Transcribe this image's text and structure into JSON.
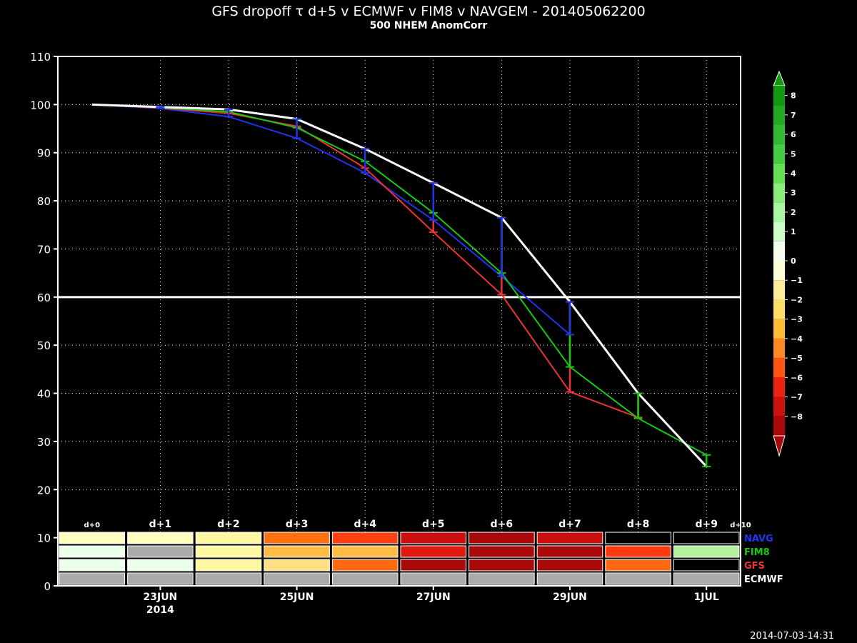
{
  "header": {
    "title": "GFS dropoff τ d+5 v ECMWF v FIM8 v NAVGEM - 201405062200",
    "subtitle": "500 NHEM AnomCorr"
  },
  "timestamp": "2014-07-03-14:31",
  "colors": {
    "NAVG": "#2233ee",
    "FIM8": "#11cc11",
    "GFS": "#ee3333",
    "ECMWF": "#ffffff",
    "missing": "#aaaaaa",
    "empty": "#000000"
  },
  "chart_data": {
    "type": "line",
    "ylim": [
      0,
      110
    ],
    "yticks": [
      0,
      10,
      20,
      30,
      40,
      50,
      60,
      70,
      80,
      90,
      100,
      110
    ],
    "x": [
      0,
      1,
      2,
      3,
      4,
      5,
      6,
      7,
      8,
      9,
      10
    ],
    "xticks": [
      {
        "x": 1,
        "label": "23JUN",
        "sub": "2014"
      },
      {
        "x": 3,
        "label": "25JUN",
        "sub": ""
      },
      {
        "x": 5,
        "label": "27JUN",
        "sub": ""
      },
      {
        "x": 7,
        "label": "29JUN",
        "sub": ""
      },
      {
        "x": 9,
        "label": "1JUL",
        "sub": ""
      }
    ],
    "reference_line": 60,
    "day_labels": [
      "d+0",
      "d+1",
      "d+2",
      "d+3",
      "d+4",
      "d+5",
      "d+6",
      "d+7",
      "d+8",
      "d+9",
      "d+10"
    ],
    "series": [
      {
        "name": "ECMWF",
        "color": "#ffffff",
        "values": [
          100,
          99.5,
          99,
          97,
          90.8,
          83.7,
          76.5,
          59,
          40,
          24.8,
          null
        ]
      },
      {
        "name": "FIM8",
        "color": "#11cc11",
        "values": [
          100,
          99.4,
          98.5,
          95.2,
          88.2,
          77.5,
          65,
          45.5,
          34.8,
          27.2,
          null
        ]
      },
      {
        "name": "GFS",
        "color": "#ee3333",
        "values": [
          100,
          99.3,
          98.2,
          95.5,
          86.8,
          73.5,
          60.5,
          40.3,
          35,
          null,
          null
        ]
      },
      {
        "name": "NAVG",
        "color": "#2233ee",
        "values": [
          100,
          99.2,
          97.5,
          93,
          85.8,
          76,
          64.3,
          52.2,
          null,
          null,
          null
        ]
      }
    ],
    "scorecard": {
      "rows": [
        "NAVG",
        "FIM8",
        "GFS",
        "ECMWF"
      ],
      "cells": {
        "NAVG": [
          "#ffffc0",
          "#ffffc0",
          "#fff8a0",
          "#ff7010",
          "#ff4010",
          "#cc1010",
          "#aa0a0a",
          "#cc1010",
          "#000000",
          "#000000",
          "#000000"
        ],
        "FIM8": [
          "#eaffea",
          "#aaaaaa",
          "#fff8a0",
          "#ffbb44",
          "#ffbb44",
          "#e01a10",
          "#aa0a0a",
          "#aa0a0a",
          "#ff3a10",
          "#b4f0a0",
          "#000000"
        ],
        "GFS": [
          "#eaffea",
          "#eaffea",
          "#fff8a0",
          "#ffe080",
          "#ff6a10",
          "#aa0a0a",
          "#aa0a0a",
          "#aa0a0a",
          "#ff6a10",
          "#000000",
          "#000000"
        ],
        "ECMWF": [
          "#aaaaaa",
          "#aaaaaa",
          "#aaaaaa",
          "#aaaaaa",
          "#aaaaaa",
          "#aaaaaa",
          "#aaaaaa",
          "#aaaaaa",
          "#aaaaaa",
          "#aaaaaa",
          "#aaaaaa"
        ]
      }
    },
    "colorbar": {
      "ticks": [
        "8",
        "7",
        "6",
        "5",
        "4",
        "3",
        "2",
        "1",
        "0",
        "−1",
        "−2",
        "−3",
        "−4",
        "−5",
        "−6",
        "−7",
        "−8"
      ],
      "colors": [
        "#119911",
        "#22aa22",
        "#33bb33",
        "#44cc44",
        "#66dd55",
        "#88ee77",
        "#aaf5a0",
        "#ccfcc8",
        "#f4fff0",
        "#fffcd8",
        "#ffee99",
        "#ffdd66",
        "#ffbb33",
        "#ff8822",
        "#ff5511",
        "#ee2211",
        "#cc1111",
        "#aa0808"
      ]
    }
  }
}
